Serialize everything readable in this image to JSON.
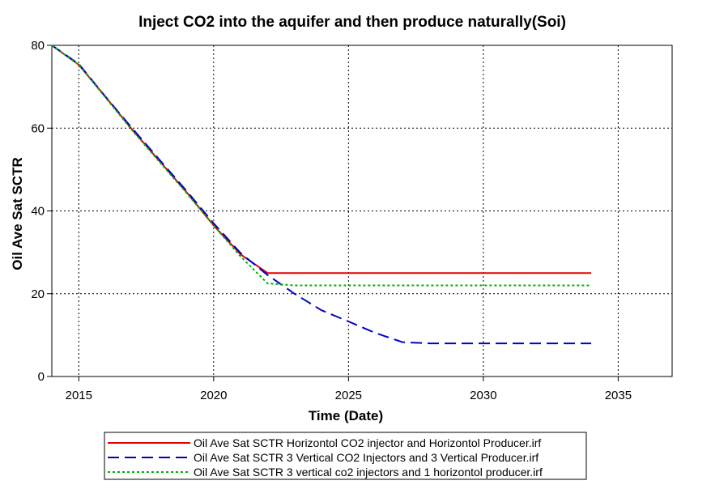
{
  "chart_data": {
    "type": "line",
    "title": "Inject CO2 into the aquifer and then produce naturally(Soi)",
    "xlabel": "Time (Date)",
    "ylabel": "Oil Ave Sat SCTR",
    "xlim": [
      2014,
      2037
    ],
    "ylim": [
      0,
      80
    ],
    "xticks": [
      2015,
      2020,
      2025,
      2030,
      2035
    ],
    "yticks": [
      0,
      20,
      40,
      60,
      80
    ],
    "grid": true,
    "legend_position": "bottom-center",
    "series": [
      {
        "name": "Oil Ave Sat SCTR Horizontol CO2 injector and Horizontol Producer.irf",
        "color": "#e00000",
        "style": "solid",
        "x": [
          2014.0,
          2015.0,
          2016.0,
          2017.0,
          2018.0,
          2019.0,
          2020.0,
          2021.0,
          2022.0,
          2022.5,
          2025.0,
          2030.0,
          2034.0
        ],
        "y": [
          80.0,
          75.3,
          67.5,
          59.5,
          52.0,
          44.5,
          36.5,
          29.5,
          25.0,
          25.0,
          25.0,
          25.0,
          25.0
        ]
      },
      {
        "name": "Oil Ave Sat SCTR 3 Vertical CO2 Injectors and 3 Vertical Producer.irf",
        "color": "#0000c8",
        "style": "dashed",
        "x": [
          2014.0,
          2015.0,
          2016.0,
          2017.0,
          2018.0,
          2019.0,
          2020.0,
          2021.0,
          2022.0,
          2023.0,
          2024.0,
          2025.0,
          2026.0,
          2027.0,
          2028.0,
          2030.0,
          2034.0
        ],
        "y": [
          80.0,
          75.5,
          67.5,
          59.8,
          52.3,
          44.8,
          37.0,
          29.8,
          24.5,
          20.0,
          16.0,
          13.3,
          10.5,
          8.3,
          8.0,
          8.0,
          8.0
        ]
      },
      {
        "name": "Oil Ave Sat SCTR 3 vertical co2 injectors and 1 horizontol producer.irf",
        "color": "#00b000",
        "style": "dotted",
        "x": [
          2014.0,
          2015.0,
          2016.0,
          2017.0,
          2018.0,
          2019.0,
          2020.0,
          2021.0,
          2022.0,
          2023.0,
          2025.0,
          2030.0,
          2034.0
        ],
        "y": [
          80.0,
          75.3,
          67.3,
          59.3,
          51.8,
          44.3,
          36.5,
          29.0,
          22.5,
          22.0,
          22.0,
          22.0,
          22.0
        ]
      }
    ]
  }
}
